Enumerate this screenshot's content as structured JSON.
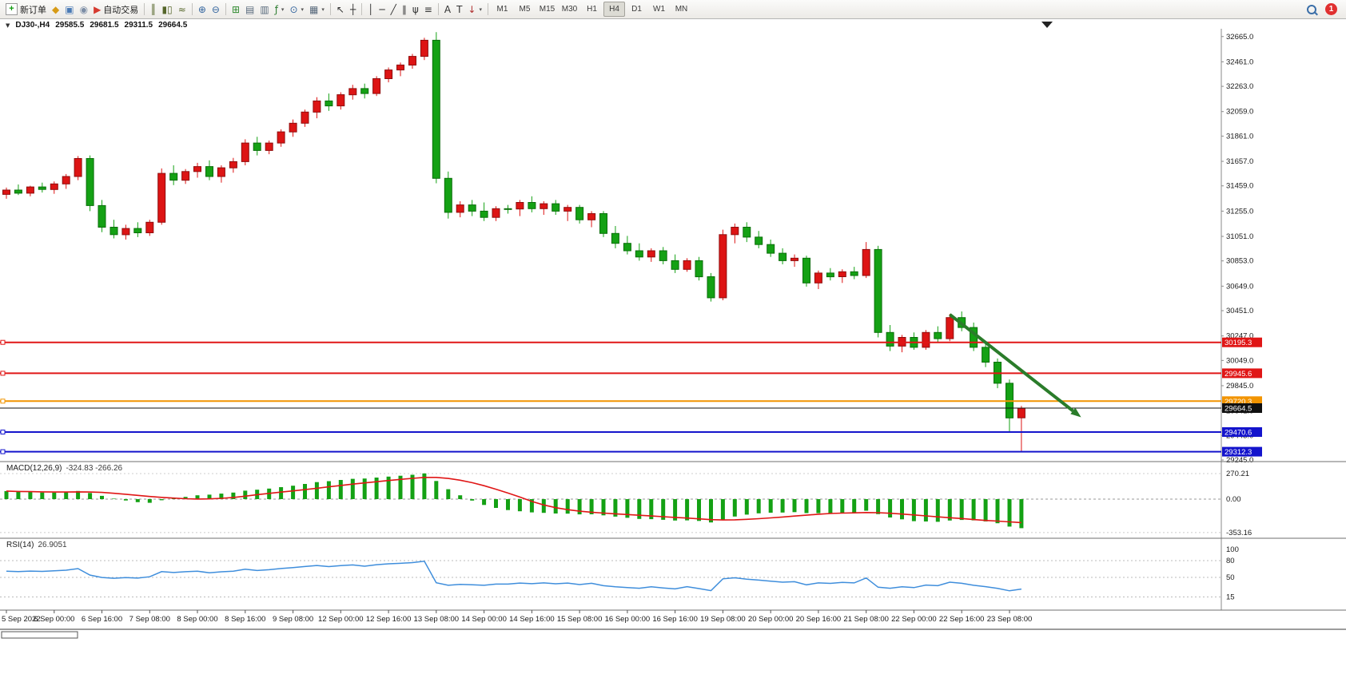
{
  "icons": {
    "dropdown": "▼",
    "caret_down": "▾"
  },
  "toolbar": {
    "timeframes": [
      "M1",
      "M5",
      "M15",
      "M30",
      "H1",
      "H4",
      "D1",
      "W1",
      "MN"
    ],
    "active_timeframe": "H4",
    "alert_badge": "1",
    "items": [
      {
        "name": "new-order-button",
        "label": "新订单",
        "icon": "new-order-icon",
        "glyph": "+",
        "gcolor": "#0f9a0f",
        "doc": true
      },
      {
        "name": "market-watch-button",
        "icon": "market-watch-icon",
        "glyph": "◆",
        "gcolor": "#d79b16"
      },
      {
        "name": "data-window-button",
        "icon": "data-window-icon",
        "glyph": "▣",
        "gcolor": "#4a7ab5"
      },
      {
        "name": "signals-button",
        "icon": "signals-icon",
        "glyph": "◉",
        "gcolor": "#7d8ea6"
      },
      {
        "name": "auto-trading-button",
        "label": "自动交易",
        "icon": "auto-trading-icon",
        "glyph": "▶",
        "gcolor": "#d63a2f"
      },
      {
        "sep": true
      },
      {
        "name": "bar-chart-button",
        "icon": "bar-chart-icon",
        "glyph": "║",
        "gcolor": "#55662a"
      },
      {
        "name": "candle-chart-button",
        "icon": "candle-chart-icon",
        "glyph": "▮▯",
        "gcolor": "#55662a"
      },
      {
        "name": "line-chart-button",
        "icon": "line-chart-icon",
        "glyph": "≈",
        "gcolor": "#55662a"
      },
      {
        "sep": true
      },
      {
        "name": "zoom-in-button",
        "icon": "zoom-in-icon",
        "glyph": "⊕",
        "gcolor": "#33659e"
      },
      {
        "name": "zoom-out-button",
        "icon": "zoom-out-icon",
        "glyph": "⊖",
        "gcolor": "#33659e"
      },
      {
        "sep": true
      },
      {
        "name": "tile-windows-button",
        "icon": "tile-windows-icon",
        "glyph": "⊞",
        "gcolor": "#2f8a2f"
      },
      {
        "name": "auto-arrange-button",
        "icon": "auto-arrange-icon",
        "glyph": "▤",
        "gcolor": "#5a6b7d"
      },
      {
        "name": "track-chart-button",
        "icon": "track-chart-icon",
        "glyph": "▥",
        "gcolor": "#5a6b7d"
      },
      {
        "name": "indicators-button",
        "icon": "indicators-icon",
        "glyph": "ƒ",
        "gcolor": "#2e7d32",
        "caret": true
      },
      {
        "name": "periods-button",
        "icon": "periods-icon",
        "glyph": "⊙",
        "gcolor": "#33659e",
        "caret": true
      },
      {
        "name": "templates-button",
        "icon": "templates-icon",
        "glyph": "▦",
        "gcolor": "#5a6b7d",
        "caret": true
      },
      {
        "sep": true
      },
      {
        "name": "cursor-button",
        "icon": "cursor-icon",
        "glyph": "↖",
        "gcolor": "#333333"
      },
      {
        "name": "crosshair-button",
        "icon": "crosshair-icon",
        "glyph": "┼",
        "gcolor": "#333333"
      },
      {
        "sep": true
      },
      {
        "name": "vline-tool-button",
        "icon": "vline-icon",
        "glyph": "│",
        "gcolor": "#333333"
      },
      {
        "name": "hline-tool-button",
        "icon": "hline-icon",
        "glyph": "─",
        "gcolor": "#333333"
      },
      {
        "name": "trendline-tool-button",
        "icon": "trendline-icon",
        "glyph": "╱",
        "gcolor": "#333333"
      },
      {
        "name": "channel-tool-button",
        "icon": "channel-icon",
        "glyph": "∥",
        "gcolor": "#333333"
      },
      {
        "name": "pitchfork-tool-button",
        "icon": "pitchfork-icon",
        "glyph": "ψ",
        "gcolor": "#333333"
      },
      {
        "name": "fibo-tool-button",
        "icon": "fibo-icon",
        "glyph": "≡",
        "gcolor": "#333333"
      },
      {
        "sep": true
      },
      {
        "name": "text-tool-button",
        "icon": "text-icon",
        "glyph": "A",
        "gcolor": "#333333"
      },
      {
        "name": "label-tool-button",
        "icon": "label-icon",
        "glyph": "T",
        "gcolor": "#333333"
      },
      {
        "name": "arrows-tool-button",
        "icon": "arrows-icon",
        "glyph": "↓",
        "gcolor": "#b03030",
        "caret": true
      },
      {
        "sep": true
      },
      {
        "timeframes": true
      },
      {
        "spacer": true
      },
      {
        "name": "search-button",
        "search": true
      },
      {
        "name": "alerts-button",
        "badge": true
      }
    ]
  },
  "chart": {
    "title": "DJ30-,H4",
    "ohlc": {
      "open": "29585.5",
      "high": "29681.5",
      "low": "29311.5",
      "close": "29664.5"
    },
    "hlines": [
      {
        "price": 30195.3,
        "label": "30195.3",
        "color": "#e01616",
        "width": 2
      },
      {
        "price": 29945.6,
        "label": "29945.6",
        "color": "#e01616",
        "width": 2
      },
      {
        "price": 29720.3,
        "label": "29720.3",
        "color": "#f29400",
        "width": 2
      },
      {
        "price": 29664.5,
        "label": "29664.5",
        "color": "#101010",
        "width": 1,
        "current": true
      },
      {
        "price": 29470.6,
        "label": "29470.6",
        "color": "#1414cc",
        "width": 2
      },
      {
        "price": 29312.3,
        "label": "29312.3",
        "color": "#1414cc",
        "width": 2
      }
    ],
    "arrow": {
      "from": {
        "candle": 79,
        "price": 30420
      },
      "to": {
        "candle": 90,
        "price": 29590
      },
      "color": "#2a7c2a",
      "width": 4
    }
  },
  "indicators": {
    "macd": {
      "name": "MACD(12,26,9)",
      "values": "-324.83 -266.26",
      "scale": [
        {
          "label": "270.21",
          "value": 270.21
        },
        {
          "label": "0.00",
          "value": 0
        },
        {
          "label": "-353.16",
          "value": -353.16
        }
      ],
      "histogram_color": "#14a114",
      "signal_color": "#e01616"
    },
    "rsi": {
      "name": "RSI(14)",
      "value": "26.9051",
      "scale": [
        {
          "label": "100",
          "value": 100
        },
        {
          "label": "80",
          "value": 80
        },
        {
          "label": "50",
          "value": 50
        },
        {
          "label": "15",
          "value": 15
        }
      ],
      "levels": [
        80,
        50,
        15
      ],
      "line_color": "#3f8edc"
    }
  },
  "chart_data": {
    "type": "candlestick",
    "symbol_timeframe": "DJ30-,H4",
    "up_color": "#dd1414",
    "down_color": "#14a114",
    "price_axis": {
      "labels": [
        "32665.0",
        "32461.0",
        "32263.0",
        "32059.0",
        "31861.0",
        "31657.0",
        "31459.0",
        "31255.0",
        "31051.0",
        "30853.0",
        "30649.0",
        "30451.0",
        "30247.0",
        "30049.0",
        "29845.0",
        "29641.0",
        "29443.0",
        "29245.0"
      ]
    },
    "time_labels": [
      "5 Sep 2022",
      "6 Sep 00:00",
      "6 Sep 16:00",
      "7 Sep 08:00",
      "8 Sep 00:00",
      "8 Sep 16:00",
      "9 Sep 08:00",
      "12 Sep 00:00",
      "12 Sep 16:00",
      "13 Sep 08:00",
      "14 Sep 00:00",
      "14 Sep 16:00",
      "15 Sep 08:00",
      "16 Sep 00:00",
      "16 Sep 16:00",
      "19 Sep 08:00",
      "20 Sep 00:00",
      "20 Sep 16:00",
      "21 Sep 08:00",
      "22 Sep 00:00",
      "22 Sep 16:00",
      "23 Sep 08:00"
    ],
    "candles": [
      [
        31390,
        31445,
        31355,
        31425
      ],
      [
        31425,
        31470,
        31385,
        31400
      ],
      [
        31400,
        31460,
        31375,
        31450
      ],
      [
        31450,
        31485,
        31405,
        31430
      ],
      [
        31430,
        31495,
        31395,
        31475
      ],
      [
        31475,
        31555,
        31435,
        31535
      ],
      [
        31535,
        31700,
        31505,
        31680
      ],
      [
        31680,
        31705,
        31255,
        31300
      ],
      [
        31300,
        31345,
        31085,
        31125
      ],
      [
        31125,
        31185,
        31035,
        31065
      ],
      [
        31065,
        31145,
        31025,
        31115
      ],
      [
        31115,
        31165,
        31045,
        31080
      ],
      [
        31080,
        31185,
        31055,
        31165
      ],
      [
        31165,
        31600,
        31145,
        31560
      ],
      [
        31560,
        31625,
        31465,
        31505
      ],
      [
        31505,
        31595,
        31475,
        31575
      ],
      [
        31575,
        31645,
        31525,
        31615
      ],
      [
        31615,
        31665,
        31505,
        31535
      ],
      [
        31535,
        31625,
        31485,
        31605
      ],
      [
        31605,
        31685,
        31565,
        31655
      ],
      [
        31655,
        31835,
        31625,
        31805
      ],
      [
        31805,
        31855,
        31705,
        31745
      ],
      [
        31745,
        31825,
        31715,
        31805
      ],
      [
        31805,
        31915,
        31775,
        31895
      ],
      [
        31895,
        31995,
        31855,
        31965
      ],
      [
        31965,
        32075,
        31935,
        32055
      ],
      [
        32055,
        32175,
        32005,
        32145
      ],
      [
        32145,
        32205,
        32065,
        32105
      ],
      [
        32105,
        32215,
        32075,
        32195
      ],
      [
        32195,
        32275,
        32155,
        32245
      ],
      [
        32245,
        32285,
        32165,
        32205
      ],
      [
        32205,
        32345,
        32185,
        32325
      ],
      [
        32325,
        32415,
        32295,
        32395
      ],
      [
        32395,
        32455,
        32345,
        32435
      ],
      [
        32435,
        32525,
        32405,
        32505
      ],
      [
        32505,
        32655,
        32475,
        32635
      ],
      [
        32635,
        32700,
        31480,
        31520
      ],
      [
        31520,
        31575,
        31195,
        31245
      ],
      [
        31245,
        31335,
        31205,
        31305
      ],
      [
        31305,
        31345,
        31215,
        31255
      ],
      [
        31255,
        31325,
        31175,
        31205
      ],
      [
        31205,
        31295,
        31175,
        31275
      ],
      [
        31275,
        31305,
        31235,
        31272
      ],
      [
        31272,
        31345,
        31215,
        31325
      ],
      [
        31325,
        31375,
        31245,
        31275
      ],
      [
        31275,
        31335,
        31225,
        31315
      ],
      [
        31315,
        31345,
        31225,
        31255
      ],
      [
        31255,
        31305,
        31175,
        31285
      ],
      [
        31285,
        31305,
        31155,
        31185
      ],
      [
        31185,
        31255,
        31125,
        31235
      ],
      [
        31235,
        31255,
        31045,
        31075
      ],
      [
        31075,
        31135,
        30955,
        30995
      ],
      [
        30995,
        31055,
        30905,
        30935
      ],
      [
        30935,
        30995,
        30855,
        30885
      ],
      [
        30885,
        30955,
        30845,
        30935
      ],
      [
        30935,
        30965,
        30825,
        30855
      ],
      [
        30855,
        30905,
        30755,
        30785
      ],
      [
        30785,
        30875,
        30765,
        30855
      ],
      [
        30855,
        30885,
        30695,
        30725
      ],
      [
        30725,
        30755,
        30525,
        30555
      ],
      [
        30555,
        31105,
        30535,
        31065
      ],
      [
        31065,
        31155,
        30995,
        31125
      ],
      [
        31125,
        31165,
        31005,
        31045
      ],
      [
        31045,
        31095,
        30955,
        30985
      ],
      [
        30985,
        31025,
        30885,
        30915
      ],
      [
        30915,
        30955,
        30825,
        30855
      ],
      [
        30855,
        30905,
        30805,
        30875
      ],
      [
        30875,
        30895,
        30645,
        30675
      ],
      [
        30675,
        30775,
        30625,
        30755
      ],
      [
        30755,
        30795,
        30695,
        30725
      ],
      [
        30725,
        30785,
        30675,
        30765
      ],
      [
        30765,
        30805,
        30705,
        30735
      ],
      [
        30735,
        31005,
        30715,
        30945
      ],
      [
        30945,
        30975,
        30235,
        30275
      ],
      [
        30275,
        30335,
        30125,
        30165
      ],
      [
        30165,
        30255,
        30115,
        30235
      ],
      [
        30235,
        30275,
        30135,
        30155
      ],
      [
        30155,
        30295,
        30135,
        30275
      ],
      [
        30275,
        30325,
        30195,
        30225
      ],
      [
        30225,
        30425,
        30205,
        30395
      ],
      [
        30395,
        30445,
        30285,
        30315
      ],
      [
        30315,
        30355,
        30125,
        30155
      ],
      [
        30155,
        30195,
        29995,
        30035
      ],
      [
        30035,
        30065,
        29825,
        29865
      ],
      [
        29865,
        29895,
        29468,
        29585
      ],
      [
        29585.5,
        29681.5,
        29311.5,
        29664.5
      ]
    ]
  }
}
